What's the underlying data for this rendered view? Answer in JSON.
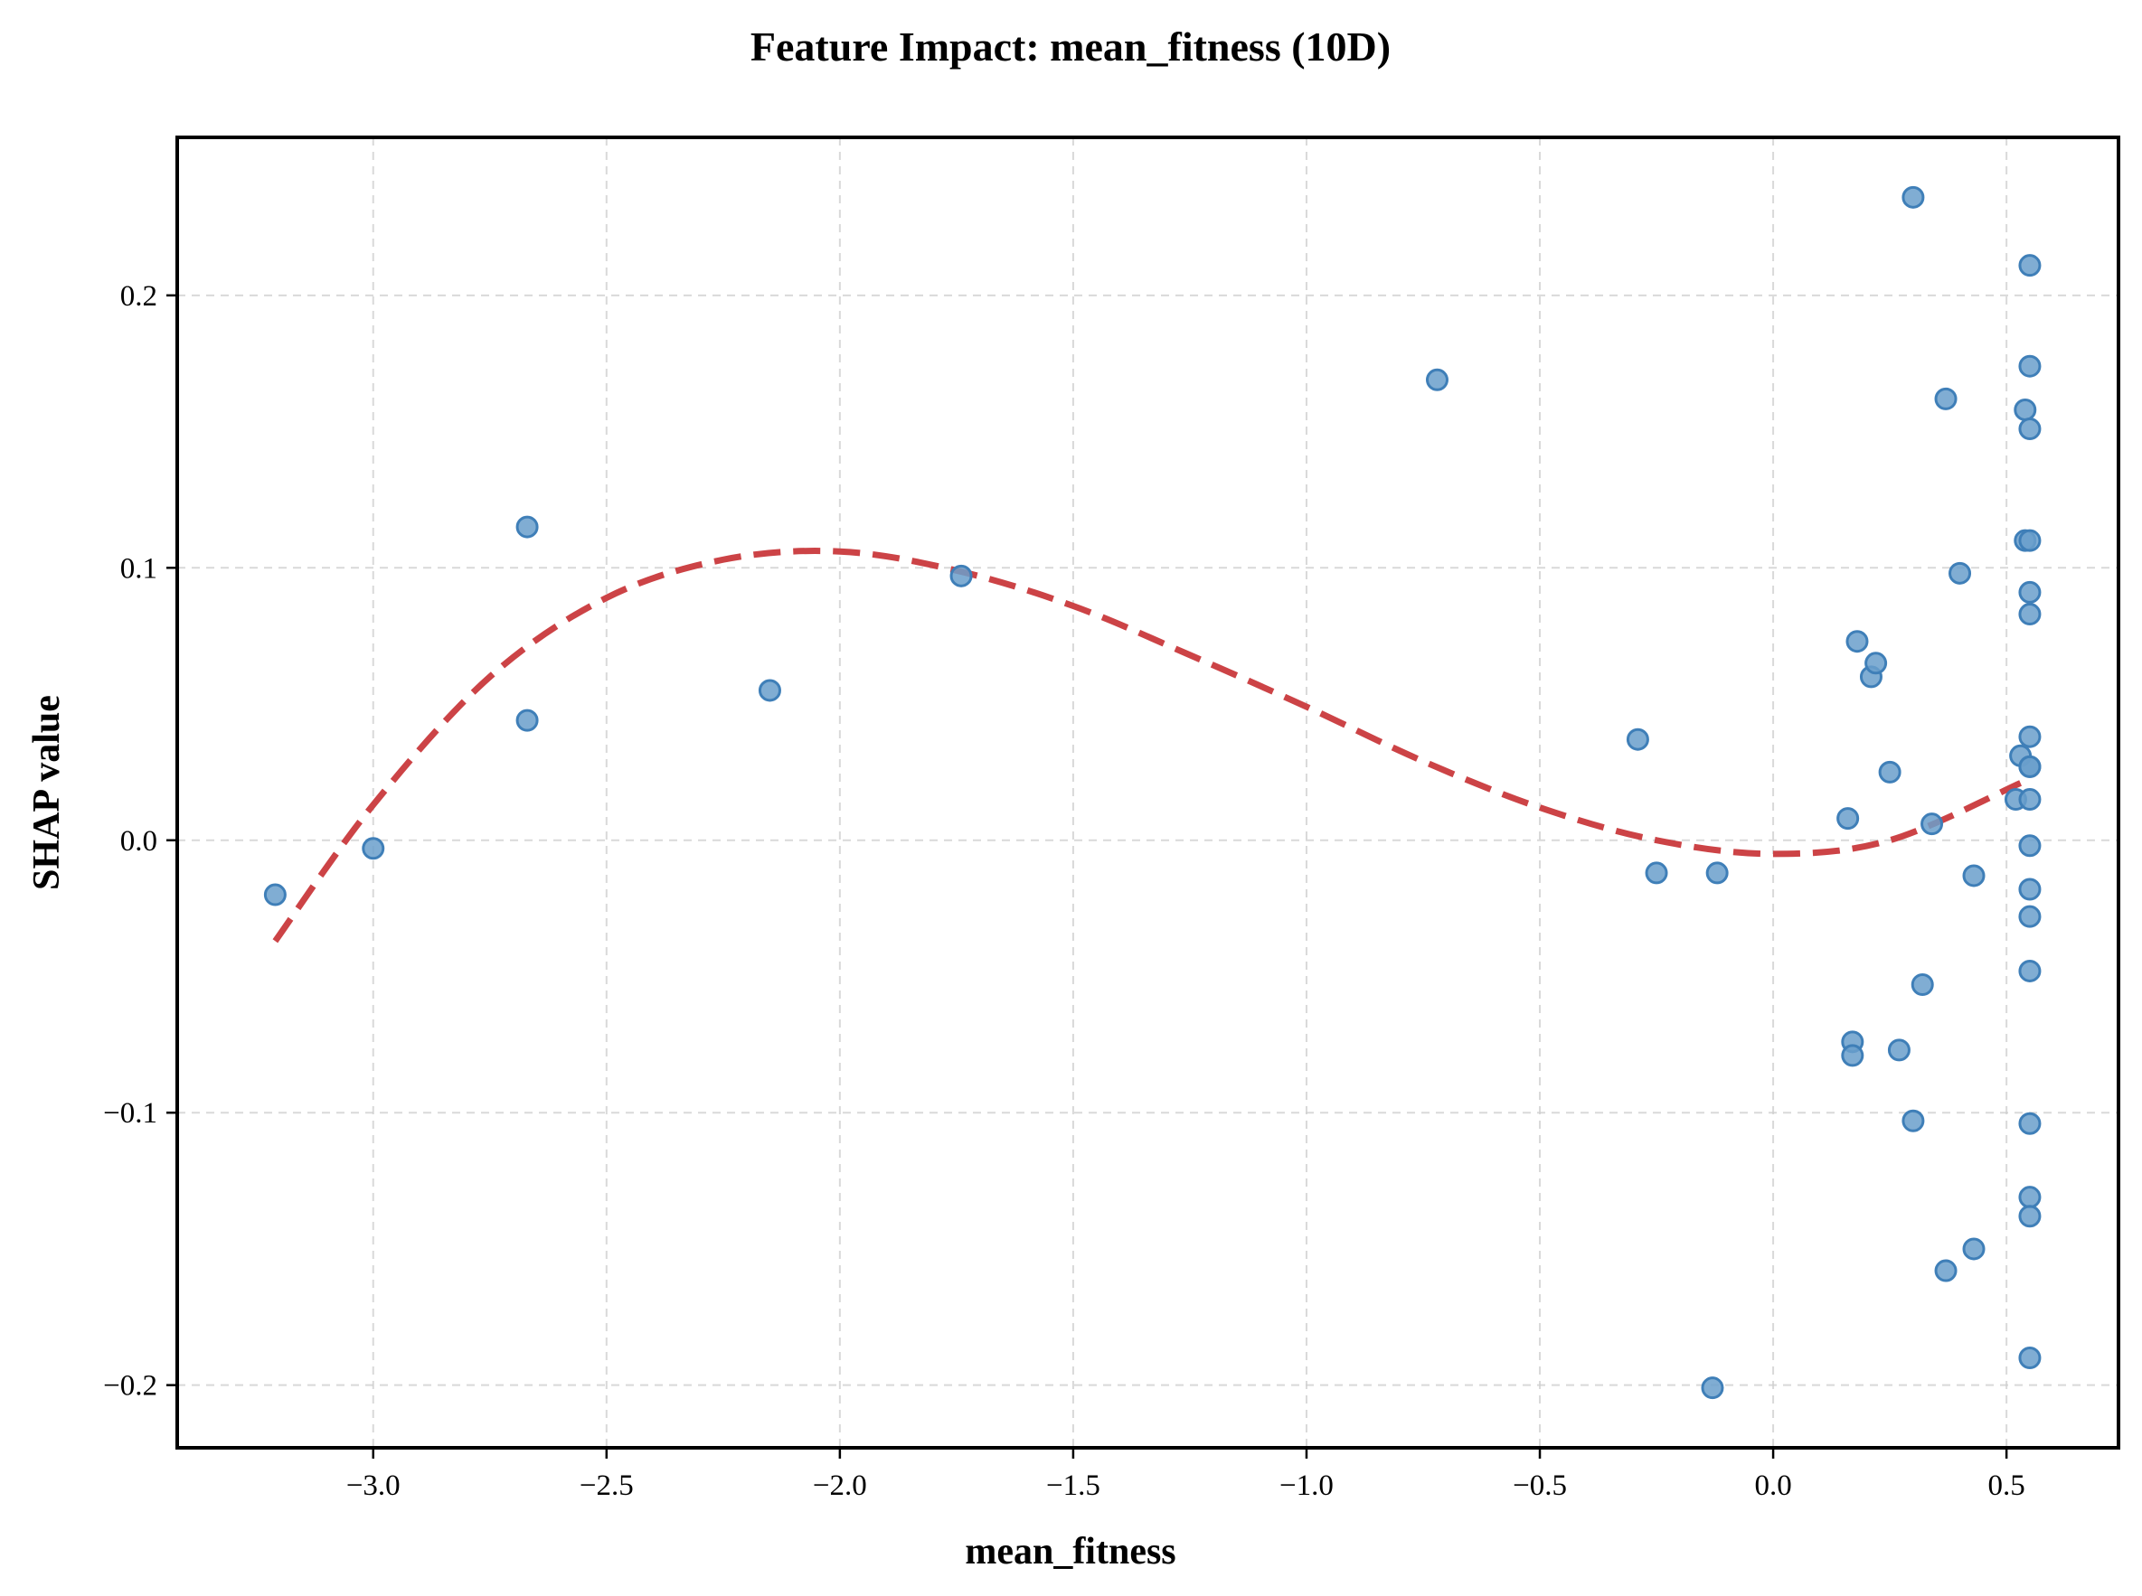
{
  "colors": {
    "point_fill": "#6a9fcb",
    "point_stroke": "#3f7fb8",
    "trend_line": "#cc4346",
    "axes": "#000000",
    "grid": "#d0d0d0"
  },
  "chart_data": {
    "type": "scatter",
    "title": "Feature Impact: mean_fitness (10D)",
    "xlabel": "mean_fitness",
    "ylabel": "SHAP value",
    "xlim": [
      -3.42,
      0.74
    ],
    "ylim": [
      -0.223,
      0.258
    ],
    "grid": true,
    "xticks": [
      -3.0,
      -2.5,
      -2.0,
      -1.5,
      -1.0,
      -0.5,
      0.0,
      0.5
    ],
    "xtick_labels": [
      "−3.0",
      "−2.5",
      "−2.0",
      "−1.5",
      "−1.0",
      "−0.5",
      "0.0",
      "0.5"
    ],
    "yticks": [
      -0.2,
      -0.1,
      0.0,
      0.1,
      0.2
    ],
    "ytick_labels": [
      "−0.2",
      "−0.1",
      "0.0",
      "0.1",
      "0.2"
    ],
    "points": [
      {
        "x": -3.21,
        "y": -0.02
      },
      {
        "x": -3.0,
        "y": -0.003
      },
      {
        "x": -2.67,
        "y": 0.115
      },
      {
        "x": -2.67,
        "y": 0.044
      },
      {
        "x": -2.15,
        "y": 0.055
      },
      {
        "x": -1.74,
        "y": 0.097
      },
      {
        "x": -0.72,
        "y": 0.169
      },
      {
        "x": -0.29,
        "y": 0.037
      },
      {
        "x": -0.25,
        "y": -0.012
      },
      {
        "x": -0.12,
        "y": -0.012
      },
      {
        "x": -0.13,
        "y": -0.201
      },
      {
        "x": 0.16,
        "y": 0.008
      },
      {
        "x": 0.17,
        "y": -0.074
      },
      {
        "x": 0.17,
        "y": -0.079
      },
      {
        "x": 0.18,
        "y": 0.073
      },
      {
        "x": 0.21,
        "y": 0.06
      },
      {
        "x": 0.22,
        "y": 0.065
      },
      {
        "x": 0.25,
        "y": 0.025
      },
      {
        "x": 0.27,
        "y": -0.077
      },
      {
        "x": 0.3,
        "y": 0.236
      },
      {
        "x": 0.3,
        "y": -0.103
      },
      {
        "x": 0.32,
        "y": -0.053
      },
      {
        "x": 0.34,
        "y": 0.006
      },
      {
        "x": 0.37,
        "y": 0.162
      },
      {
        "x": 0.37,
        "y": -0.158
      },
      {
        "x": 0.4,
        "y": 0.098
      },
      {
        "x": 0.43,
        "y": -0.013
      },
      {
        "x": 0.43,
        "y": -0.15
      },
      {
        "x": 0.52,
        "y": 0.015
      },
      {
        "x": 0.53,
        "y": 0.031
      },
      {
        "x": 0.54,
        "y": 0.158
      },
      {
        "x": 0.54,
        "y": 0.11
      },
      {
        "x": 0.55,
        "y": 0.211
      },
      {
        "x": 0.55,
        "y": 0.174
      },
      {
        "x": 0.55,
        "y": 0.151
      },
      {
        "x": 0.55,
        "y": 0.11
      },
      {
        "x": 0.55,
        "y": 0.091
      },
      {
        "x": 0.55,
        "y": 0.083
      },
      {
        "x": 0.55,
        "y": 0.038
      },
      {
        "x": 0.55,
        "y": 0.027
      },
      {
        "x": 0.55,
        "y": 0.027
      },
      {
        "x": 0.55,
        "y": 0.015
      },
      {
        "x": 0.55,
        "y": -0.002
      },
      {
        "x": 0.55,
        "y": -0.018
      },
      {
        "x": 0.55,
        "y": -0.028
      },
      {
        "x": 0.55,
        "y": -0.048
      },
      {
        "x": 0.55,
        "y": -0.104
      },
      {
        "x": 0.55,
        "y": -0.131
      },
      {
        "x": 0.55,
        "y": -0.138
      },
      {
        "x": 0.55,
        "y": -0.19
      }
    ],
    "trend": {
      "type": "line",
      "style": "dashed",
      "x": [
        -3.21,
        -3.0,
        -2.75,
        -2.5,
        -2.25,
        -2.0,
        -1.75,
        -1.5,
        -1.25,
        -1.0,
        -0.75,
        -0.5,
        -0.25,
        0.0,
        0.25,
        0.53
      ],
      "y": [
        -0.037,
        0.013,
        0.06,
        0.089,
        0.103,
        0.106,
        0.099,
        0.086,
        0.068,
        0.049,
        0.029,
        0.012,
        0.0,
        -0.005,
        0.0,
        0.021
      ]
    }
  }
}
